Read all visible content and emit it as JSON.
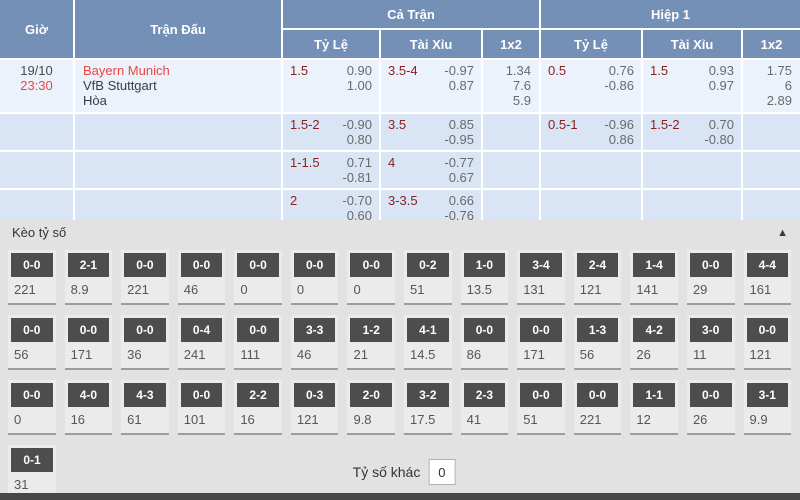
{
  "colors": {
    "header_blue": "#7590b6",
    "red_accent": "#e8483f",
    "maroon_accent": "#8b1e1e",
    "score_box": "#4d4d4d"
  },
  "header": {
    "time": "Giờ",
    "match": "Trận Đấu",
    "full_match": "Cả Trận",
    "first_half": "Hiệp 1",
    "handicap": "Tỷ Lệ",
    "over_under": "Tài Xỉu",
    "one_x_two": "1x2"
  },
  "match_row": {
    "date": "19/10",
    "kickoff": "23:30",
    "home": "Bayern Munich",
    "away": "VfB Stuttgart",
    "draw": "Hòa"
  },
  "odds_rows": [
    {
      "ft_hdp_line": "1.5",
      "ft_hdp_p1": "0.90",
      "ft_hdp_p2": "1.00",
      "ft_ou_line": "3.5-4",
      "ft_ou_p1": "-0.97",
      "ft_ou_p2": "0.87",
      "ft_1x2_1": "1.34",
      "ft_1x2_x": "7.6",
      "ft_1x2_2": "5.9",
      "h1_hdp_line": "0.5",
      "h1_hdp_p1": "0.76",
      "h1_hdp_p2": "-0.86",
      "h1_ou_line": "1.5",
      "h1_ou_p1": "0.93",
      "h1_ou_p2": "0.97",
      "h1_1x2_1": "1.75",
      "h1_1x2_x": "6",
      "h1_1x2_2": "2.89"
    },
    {
      "ft_hdp_line": "1.5-2",
      "ft_hdp_p1": "-0.90",
      "ft_hdp_p2": "0.80",
      "ft_ou_line": "3.5",
      "ft_ou_p1": "0.85",
      "ft_ou_p2": "-0.95",
      "h1_hdp_line": "0.5-1",
      "h1_hdp_p1": "-0.96",
      "h1_hdp_p2": "0.86",
      "h1_ou_line": "1.5-2",
      "h1_ou_p1": "0.70",
      "h1_ou_p2": "-0.80"
    },
    {
      "ft_hdp_line": "1-1.5",
      "ft_hdp_p1": "0.71",
      "ft_hdp_p2": "-0.81",
      "ft_ou_line": "4",
      "ft_ou_p1": "-0.77",
      "ft_ou_p2": "0.67"
    },
    {
      "ft_hdp_line": "2",
      "ft_hdp_p1": "-0.70",
      "ft_hdp_p2": "0.60",
      "ft_ou_line": "3-3.5",
      "ft_ou_p1": "0.66",
      "ft_ou_p2": "-0.76"
    }
  ],
  "score_section": {
    "title": "Kèo tỷ số",
    "collapse_icon": "▲",
    "other_label": "Tỷ số khác",
    "other_value": "0",
    "rows": [
      [
        {
          "score": "0-0",
          "odds": "221"
        },
        {
          "score": "2-1",
          "odds": "8.9"
        },
        {
          "score": "0-0",
          "odds": "221"
        },
        {
          "score": "0-0",
          "odds": "46"
        },
        {
          "score": "0-0",
          "odds": "0"
        },
        {
          "score": "0-0",
          "odds": "0"
        },
        {
          "score": "0-0",
          "odds": "0"
        },
        {
          "score": "0-2",
          "odds": "51"
        },
        {
          "score": "1-0",
          "odds": "13.5"
        },
        {
          "score": "3-4",
          "odds": "131"
        },
        {
          "score": "2-4",
          "odds": "121"
        },
        {
          "score": "1-4",
          "odds": "141"
        },
        {
          "score": "0-0",
          "odds": "29"
        },
        {
          "score": "4-4",
          "odds": "161"
        }
      ],
      [
        {
          "score": "0-0",
          "odds": "56"
        },
        {
          "score": "0-0",
          "odds": "171"
        },
        {
          "score": "0-0",
          "odds": "36"
        },
        {
          "score": "0-4",
          "odds": "241"
        },
        {
          "score": "0-0",
          "odds": "111"
        },
        {
          "score": "3-3",
          "odds": "46"
        },
        {
          "score": "1-2",
          "odds": "21"
        },
        {
          "score": "4-1",
          "odds": "14.5"
        },
        {
          "score": "0-0",
          "odds": "86"
        },
        {
          "score": "0-0",
          "odds": "171"
        },
        {
          "score": "1-3",
          "odds": "56"
        },
        {
          "score": "4-2",
          "odds": "26"
        },
        {
          "score": "3-0",
          "odds": "11"
        },
        {
          "score": "0-0",
          "odds": "121"
        }
      ],
      [
        {
          "score": "0-0",
          "odds": "0"
        },
        {
          "score": "4-0",
          "odds": "16"
        },
        {
          "score": "4-3",
          "odds": "61"
        },
        {
          "score": "0-0",
          "odds": "101"
        },
        {
          "score": "2-2",
          "odds": "16"
        },
        {
          "score": "0-3",
          "odds": "121"
        },
        {
          "score": "2-0",
          "odds": "9.8"
        },
        {
          "score": "3-2",
          "odds": "17.5"
        },
        {
          "score": "2-3",
          "odds": "41"
        },
        {
          "score": "0-0",
          "odds": "51"
        },
        {
          "score": "0-0",
          "odds": "221"
        },
        {
          "score": "1-1",
          "odds": "12"
        },
        {
          "score": "0-0",
          "odds": "26"
        },
        {
          "score": "3-1",
          "odds": "9.9"
        }
      ],
      [
        {
          "score": "0-1",
          "odds": "31"
        }
      ]
    ]
  }
}
